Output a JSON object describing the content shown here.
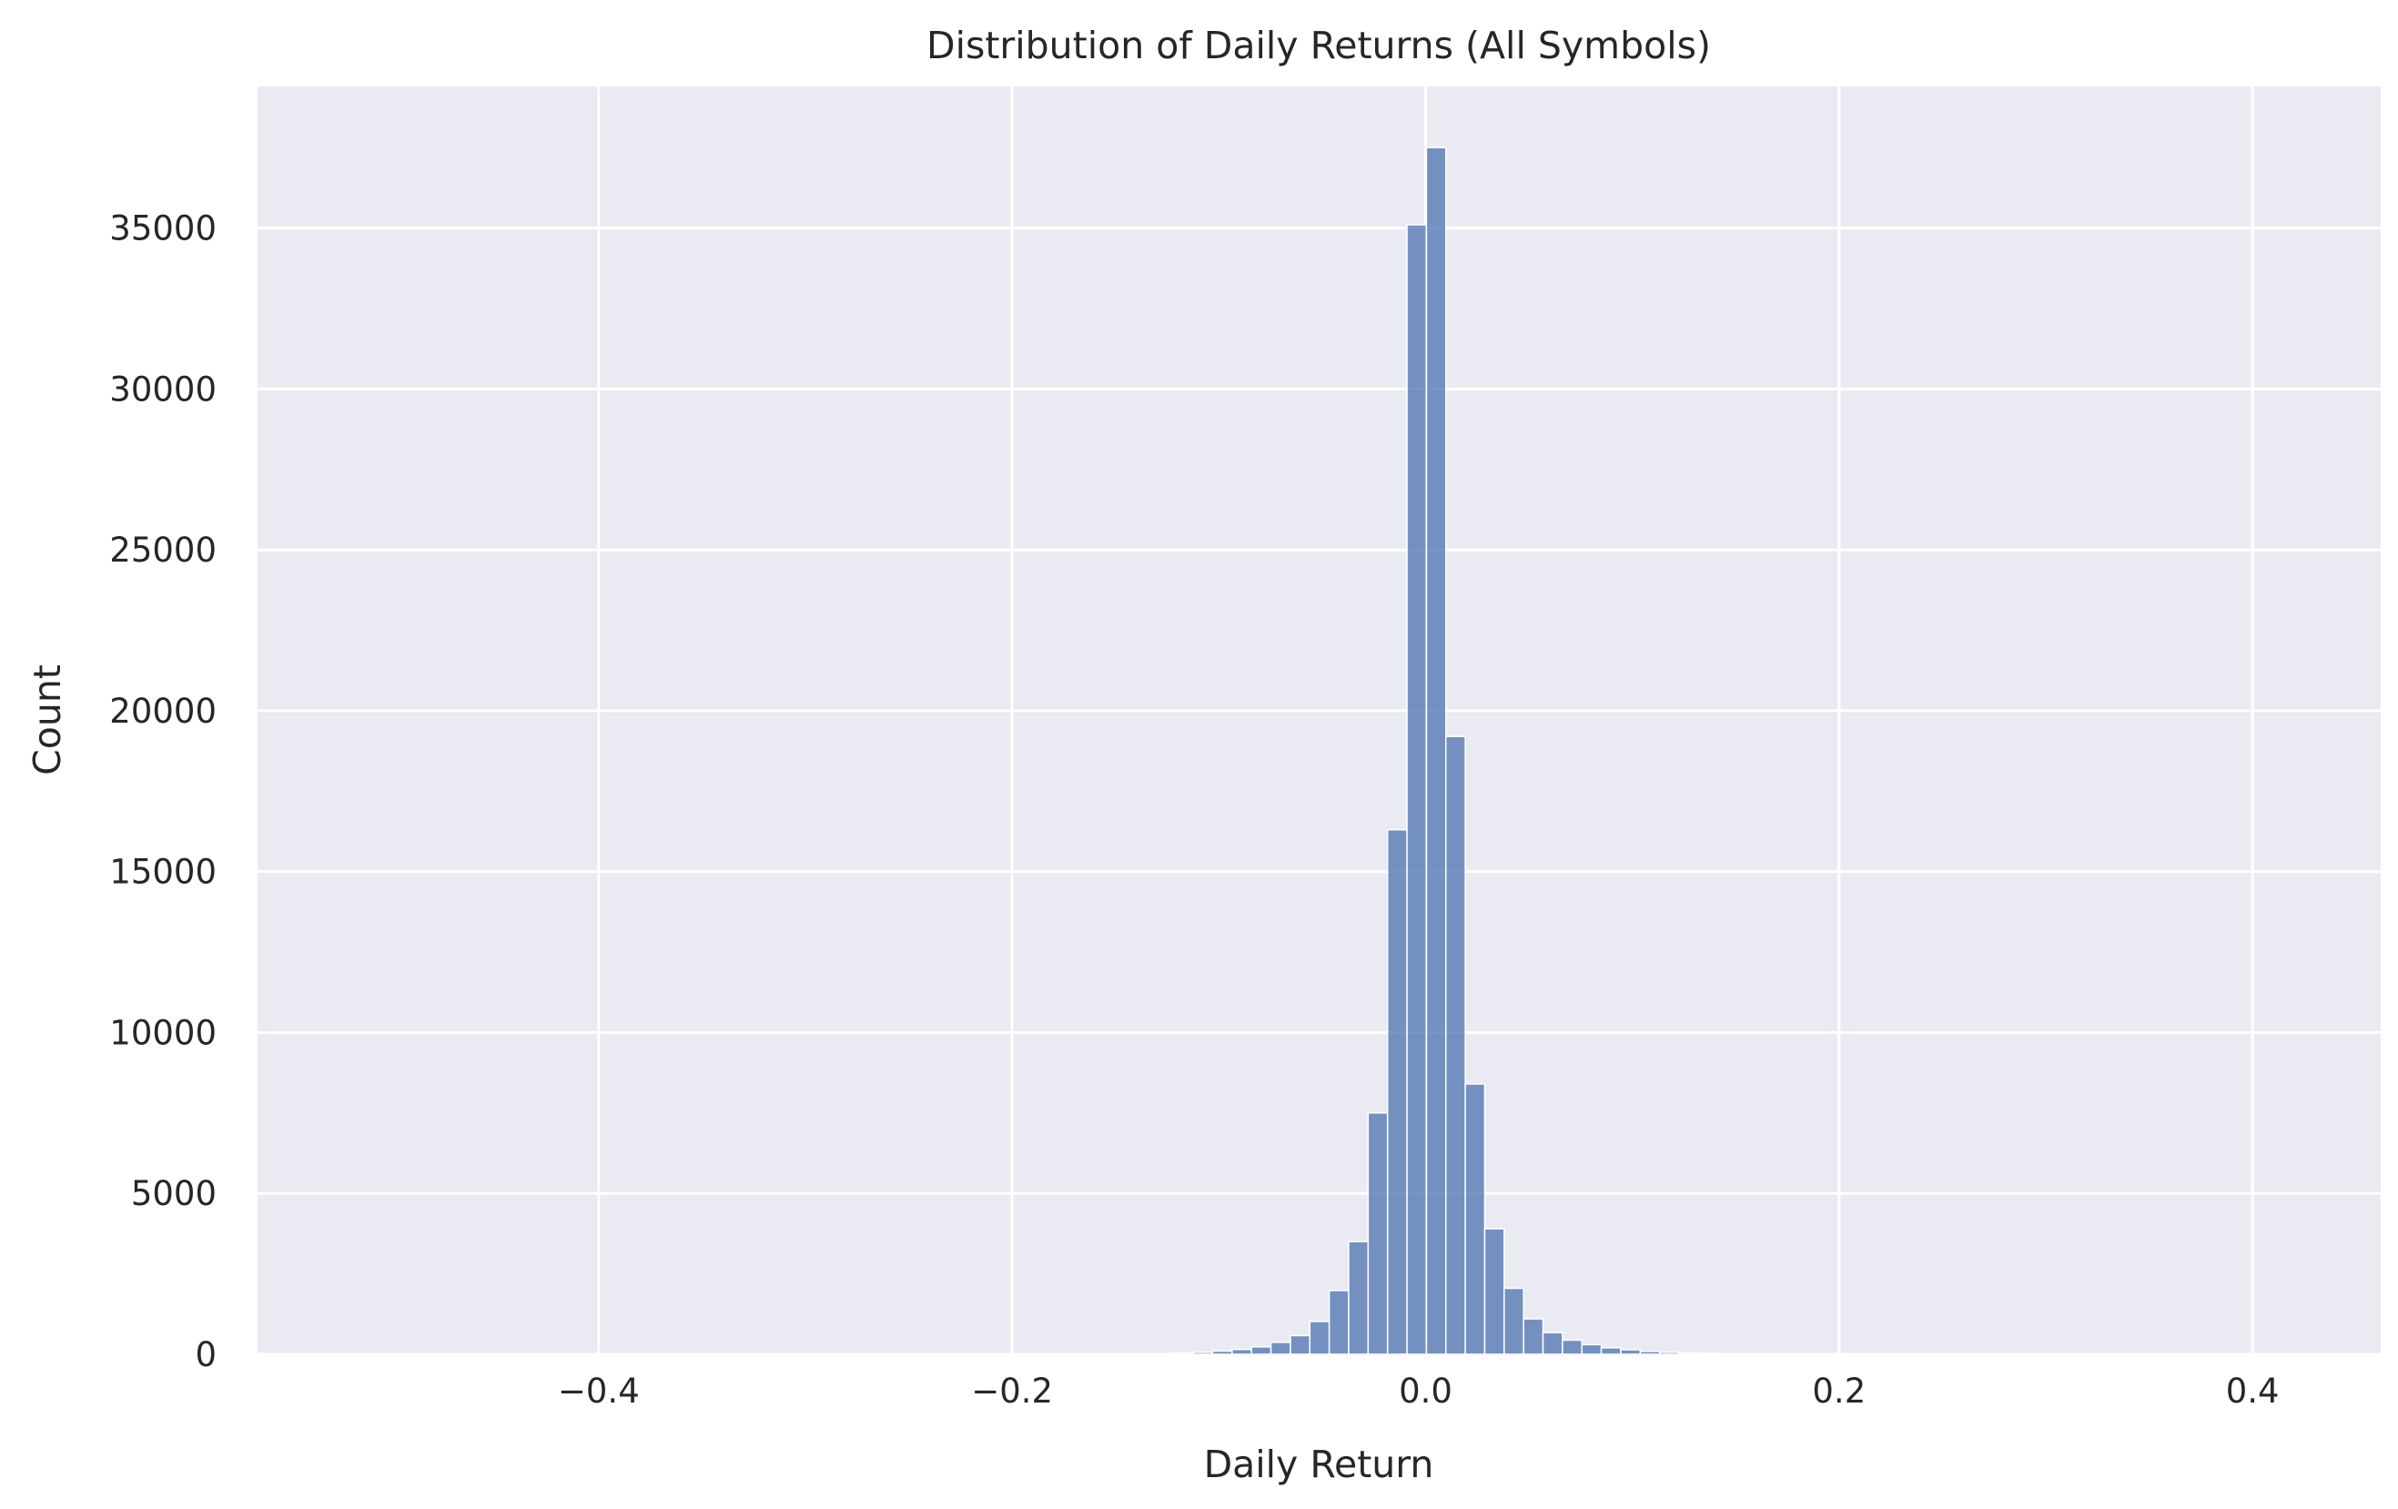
{
  "chart_data": {
    "type": "bar",
    "title": "Distribution of Daily Returns (All Symbols)",
    "xlabel": "Daily Return",
    "ylabel": "Count",
    "xlim": [
      -0.565,
      0.462
    ],
    "ylim": [
      0,
      39400
    ],
    "xticks": [
      -0.4,
      -0.2,
      0.0,
      0.2,
      0.4
    ],
    "xtick_labels": [
      "−0.4",
      "−0.2",
      "0.0",
      "0.2",
      "0.4"
    ],
    "yticks": [
      0,
      5000,
      10000,
      15000,
      20000,
      25000,
      30000,
      35000
    ],
    "ytick_labels": [
      "0",
      "5000",
      "10000",
      "15000",
      "20000",
      "25000",
      "30000",
      "35000"
    ],
    "grid": true,
    "bin_width": 0.0094,
    "bins": [
      {
        "x": -0.1265,
        "count": 20
      },
      {
        "x": -0.1171,
        "count": 40
      },
      {
        "x": -0.1077,
        "count": 60
      },
      {
        "x": -0.0983,
        "count": 100
      },
      {
        "x": -0.0889,
        "count": 150
      },
      {
        "x": -0.0795,
        "count": 230
      },
      {
        "x": -0.0701,
        "count": 370
      },
      {
        "x": -0.0607,
        "count": 580
      },
      {
        "x": -0.0513,
        "count": 1020
      },
      {
        "x": -0.0419,
        "count": 1980
      },
      {
        "x": -0.0325,
        "count": 3500
      },
      {
        "x": -0.0231,
        "count": 7500
      },
      {
        "x": -0.0137,
        "count": 16300
      },
      {
        "x": -0.0043,
        "count": 35100
      },
      {
        "x": 0.0051,
        "count": 37500
      },
      {
        "x": 0.0145,
        "count": 19200
      },
      {
        "x": 0.0239,
        "count": 8400
      },
      {
        "x": 0.0333,
        "count": 3900
      },
      {
        "x": 0.0427,
        "count": 2050
      },
      {
        "x": 0.0521,
        "count": 1100
      },
      {
        "x": 0.0615,
        "count": 670
      },
      {
        "x": 0.0709,
        "count": 440
      },
      {
        "x": 0.0803,
        "count": 300
      },
      {
        "x": 0.0897,
        "count": 200
      },
      {
        "x": 0.0991,
        "count": 140
      },
      {
        "x": 0.1085,
        "count": 90
      },
      {
        "x": 0.1179,
        "count": 60
      },
      {
        "x": 0.1273,
        "count": 40
      },
      {
        "x": 0.1367,
        "count": 25
      }
    ],
    "bar_color": "#4c72b0",
    "bar_opacity": 0.75,
    "background_color": "#eaeaf2",
    "grid_color": "#ffffff"
  }
}
